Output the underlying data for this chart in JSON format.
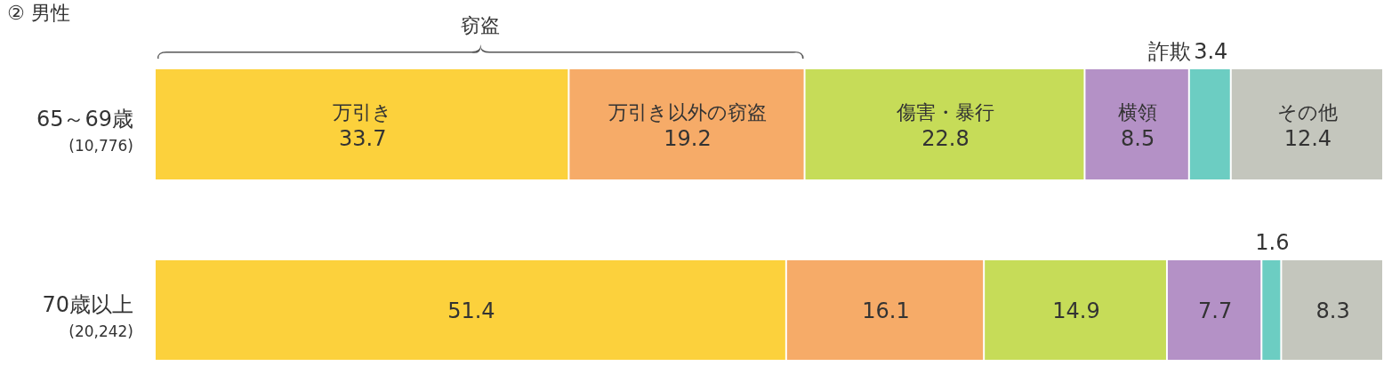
{
  "chart_data": {
    "type": "bar",
    "title": "② 男性",
    "orientation": "horizontal",
    "stacked": true,
    "categories": [
      "65～69歳\n(10,776)",
      "70歳以上\n(20,242)"
    ],
    "series": [
      {
        "name": "万引き",
        "color": "#fcd13c",
        "values": [
          33.7,
          51.4
        ],
        "value_labels": [
          "33.7",
          "51.4"
        ]
      },
      {
        "name": "万引き以外の窃盗",
        "color": "#f6ab68",
        "values": [
          19.2,
          16.1
        ],
        "value_labels": [
          "19.2",
          "16.1"
        ]
      },
      {
        "name": "傷害・暴行",
        "color": "#c6dc58",
        "values": [
          22.8,
          14.9
        ],
        "value_labels": [
          "22.8",
          "14.9"
        ]
      },
      {
        "name": "横領",
        "color": "#b491c6",
        "values": [
          8.5,
          7.7
        ],
        "value_labels": [
          "8.5",
          "7.7"
        ]
      },
      {
        "name": "詐欺",
        "color": "#6ccdc2",
        "values": [
          3.4,
          1.6
        ],
        "value_labels": [
          "3.4",
          "1.6"
        ]
      },
      {
        "name": "その他",
        "color": "#c4c6bd",
        "values": [
          12.4,
          8.3
        ],
        "value_labels": [
          "12.4",
          "8.3"
        ]
      }
    ],
    "annotations": [
      "窃盗"
    ]
  }
}
